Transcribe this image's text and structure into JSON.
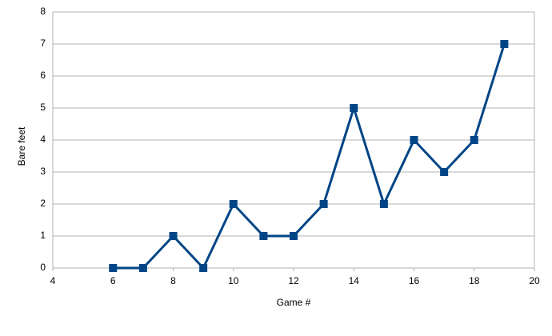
{
  "chart_data": {
    "type": "line",
    "x_label": "Game #",
    "y_label": "Bare feet",
    "x": [
      6,
      7,
      8,
      9,
      10,
      11,
      12,
      13,
      14,
      15,
      16,
      17,
      18,
      19
    ],
    "series": [
      {
        "name": "Bare feet",
        "color": "#004586",
        "values": [
          0,
          0,
          1,
          0,
          2,
          1,
          1,
          2,
          5,
          2,
          4,
          3,
          4,
          7
        ]
      }
    ],
    "xlim": [
      4,
      20
    ],
    "xticks": [
      4,
      6,
      8,
      10,
      12,
      14,
      16,
      18,
      20
    ],
    "ylim": [
      0,
      8
    ],
    "yticks": [
      0,
      1,
      2,
      3,
      4,
      5,
      6,
      7,
      8
    ],
    "grid": true,
    "legend": false
  }
}
